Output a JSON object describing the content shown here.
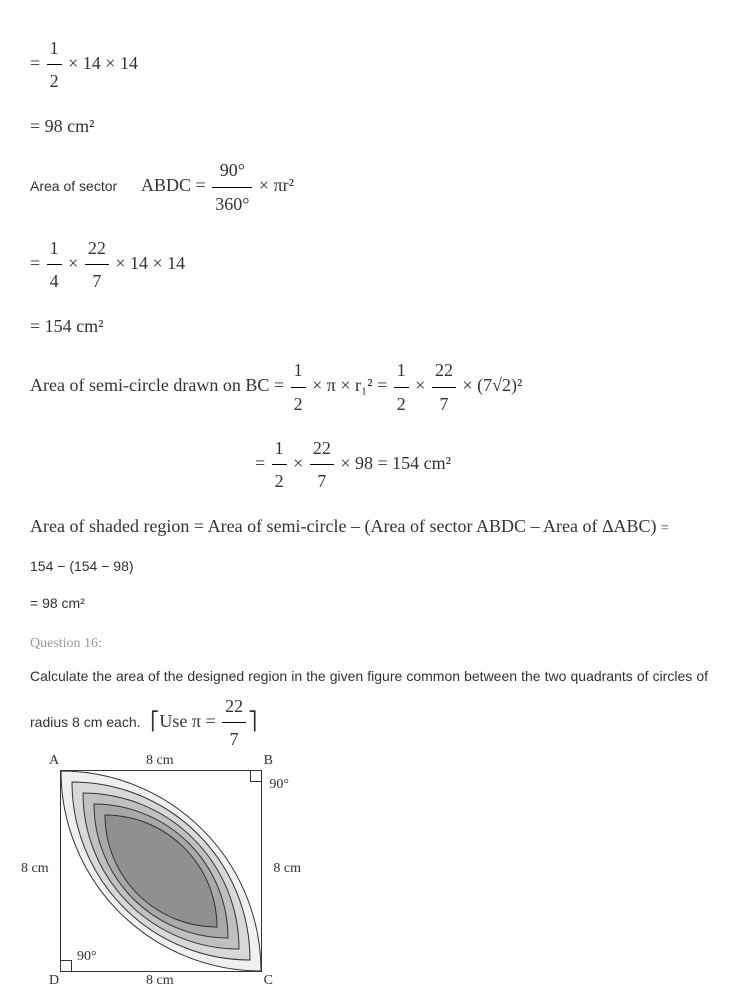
{
  "sol": {
    "step1_expr": "× 14 × 14",
    "step1_frac_n": "1",
    "step1_frac_d": "2",
    "step2": "= 98 cm²",
    "sector_label": "Area of sector",
    "sector_name": "ABDC =",
    "sector_frac1_n": "90°",
    "sector_frac1_d": "360°",
    "sector_rest": "× πr²",
    "step3_f1n": "1",
    "step3_f1d": "4",
    "step3_f2n": "22",
    "step3_f2d": "7",
    "step3_rest": "× 14 × 14",
    "step4": "= 154 cm²",
    "semi_label": "Area of semi-circle drawn on BC =",
    "semi_f1n": "1",
    "semi_f1d": "2",
    "semi_mid1": "× π × r₁² =",
    "semi_f2n": "1",
    "semi_f2d": "2",
    "semi_f3n": "22",
    "semi_f3d": "7",
    "semi_end": "× (7√2)²",
    "semi2_f1n": "1",
    "semi2_f1d": "2",
    "semi2_f2n": "22",
    "semi2_f2d": "7",
    "semi2_rest": "× 98 = 154 cm²",
    "shade_label": "Area of shaded region = Area of semi-circle – (Area of sector ABDC – Area of ΔABC)",
    "calc1": "154 − (154 − 98)",
    "calc2": "= 98 cm²"
  },
  "q16": {
    "title": "Question 16:",
    "text": "Calculate the area of the designed region in the given figure common between the two quadrants of circles of radius 8 cm each.",
    "usepi_pre": "Use π =",
    "usepi_n": "22",
    "usepi_d": "7"
  },
  "fig": {
    "A": "A",
    "B": "B",
    "C": "C",
    "D": "D",
    "side": "8 cm",
    "ang": "90°",
    "shades": [
      "#f0f0f0",
      "#d8d8d8",
      "#c0c0c0",
      "#a8a8a8",
      "#909090"
    ]
  }
}
